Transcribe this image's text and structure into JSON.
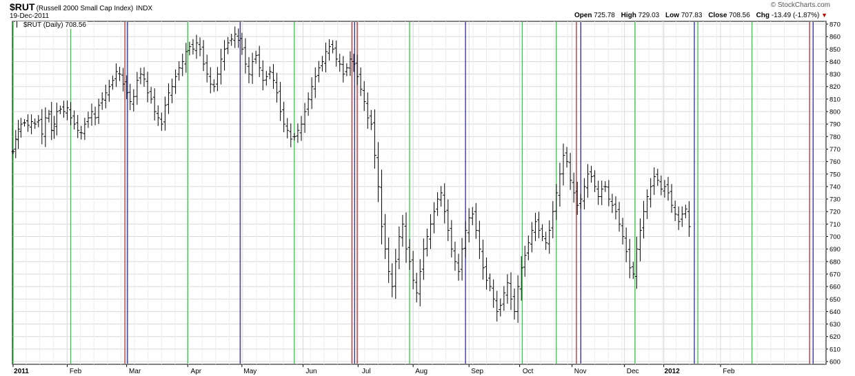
{
  "header": {
    "symbol": "$RUT",
    "description": "(Russell 2000 Small Cap Index)",
    "exchange": "INDX",
    "date": "19-Dec-2011",
    "brand": "© StockCharts.com",
    "open_label": "Open",
    "open": "725.78",
    "high_label": "High",
    "high": "729.03",
    "low_label": "Low",
    "low": "707.83",
    "close_label": "Close",
    "close": "708.56",
    "chg_label": "Chg",
    "chg": "-13.49 (-1.87%)",
    "chg_direction_icon": "down-triangle-icon",
    "chg_color": "#c00000"
  },
  "legend": {
    "label": "$RUT (Daily) 708.56"
  },
  "chart_data": {
    "type": "ohlc-bar",
    "title": "$RUT (Russell 2000 Small Cap Index)",
    "ylim": [
      600,
      870
    ],
    "y_ticks": [
      600,
      610,
      620,
      630,
      640,
      650,
      660,
      670,
      680,
      690,
      700,
      710,
      720,
      730,
      740,
      750,
      760,
      770,
      780,
      790,
      800,
      810,
      820,
      830,
      840,
      850,
      860,
      870
    ],
    "x_tick_labels": [
      "2011",
      "Feb",
      "Mar",
      "Apr",
      "May",
      "Jun",
      "Jul",
      "Aug",
      "Sep",
      "Oct",
      "Nov",
      "Dec",
      "2012",
      "Feb"
    ],
    "x_tick_bold": [
      "2011",
      "2012"
    ],
    "grid": true,
    "colors": {
      "bars": "#000000",
      "grid": "#d8d8d8",
      "green": "#2ecc40",
      "red": "#b03030",
      "blue": "#2b2b9e"
    },
    "closes": [
      [
        0,
        768
      ],
      [
        3,
        778
      ],
      [
        6,
        786
      ],
      [
        9,
        790
      ],
      [
        13,
        791
      ],
      [
        17,
        789
      ],
      [
        21,
        792
      ],
      [
        25,
        790
      ],
      [
        29,
        793
      ],
      [
        33,
        782
      ],
      [
        37,
        795
      ],
      [
        41,
        798
      ],
      [
        44,
        785
      ],
      [
        47,
        790
      ],
      [
        50,
        800
      ],
      [
        54,
        802
      ],
      [
        58,
        800
      ],
      [
        62,
        803
      ],
      [
        66,
        795
      ],
      [
        70,
        790
      ],
      [
        74,
        785
      ],
      [
        78,
        783
      ],
      [
        82,
        790
      ],
      [
        86,
        795
      ],
      [
        90,
        800
      ],
      [
        94,
        795
      ],
      [
        98,
        805
      ],
      [
        102,
        810
      ],
      [
        106,
        815
      ],
      [
        110,
        820
      ],
      [
        114,
        825
      ],
      [
        118,
        832
      ],
      [
        122,
        830
      ],
      [
        126,
        822
      ],
      [
        130,
        815
      ],
      [
        134,
        808
      ],
      [
        138,
        812
      ],
      [
        142,
        825
      ],
      [
        146,
        830
      ],
      [
        150,
        826
      ],
      [
        154,
        815
      ],
      [
        158,
        810
      ],
      [
        162,
        800
      ],
      [
        166,
        795
      ],
      [
        170,
        790
      ],
      [
        174,
        805
      ],
      [
        178,
        815
      ],
      [
        182,
        820
      ],
      [
        186,
        828
      ],
      [
        190,
        835
      ],
      [
        194,
        840
      ],
      [
        198,
        848
      ],
      [
        202,
        852
      ],
      [
        206,
        850
      ],
      [
        210,
        855
      ],
      [
        214,
        850
      ],
      [
        218,
        838
      ],
      [
        222,
        830
      ],
      [
        226,
        822
      ],
      [
        230,
        820
      ],
      [
        234,
        830
      ],
      [
        238,
        842
      ],
      [
        242,
        850
      ],
      [
        246,
        855
      ],
      [
        250,
        858
      ],
      [
        254,
        862
      ],
      [
        258,
        857
      ],
      [
        262,
        850
      ],
      [
        266,
        838
      ],
      [
        270,
        830
      ],
      [
        274,
        840
      ],
      [
        278,
        845
      ],
      [
        282,
        835
      ],
      [
        286,
        825
      ],
      [
        290,
        828
      ],
      [
        294,
        832
      ],
      [
        298,
        825
      ],
      [
        302,
        815
      ],
      [
        306,
        800
      ],
      [
        310,
        790
      ],
      [
        314,
        785
      ],
      [
        318,
        778
      ],
      [
        322,
        780
      ],
      [
        326,
        785
      ],
      [
        330,
        790
      ],
      [
        334,
        800
      ],
      [
        338,
        810
      ],
      [
        342,
        820
      ],
      [
        346,
        828
      ],
      [
        350,
        835
      ],
      [
        354,
        840
      ],
      [
        358,
        848
      ],
      [
        362,
        852
      ],
      [
        366,
        850
      ],
      [
        370,
        842
      ],
      [
        374,
        838
      ],
      [
        378,
        830
      ],
      [
        382,
        835
      ],
      [
        386,
        842
      ],
      [
        390,
        838
      ],
      [
        394,
        828
      ],
      [
        398,
        818
      ],
      [
        402,
        808
      ],
      [
        406,
        795
      ],
      [
        410,
        790
      ],
      [
        414,
        765
      ],
      [
        418,
        740
      ],
      [
        422,
        708
      ],
      [
        426,
        690
      ],
      [
        430,
        672
      ],
      [
        434,
        660
      ],
      [
        438,
        680
      ],
      [
        442,
        700
      ],
      [
        446,
        710
      ],
      [
        450,
        690
      ],
      [
        454,
        680
      ],
      [
        458,
        665
      ],
      [
        462,
        655
      ],
      [
        466,
        672
      ],
      [
        470,
        690
      ],
      [
        474,
        700
      ],
      [
        478,
        710
      ],
      [
        482,
        720
      ],
      [
        486,
        730
      ],
      [
        490,
        735
      ],
      [
        494,
        720
      ],
      [
        498,
        705
      ],
      [
        502,
        690
      ],
      [
        506,
        680
      ],
      [
        510,
        672
      ],
      [
        514,
        690
      ],
      [
        518,
        705
      ],
      [
        522,
        715
      ],
      [
        526,
        718
      ],
      [
        530,
        705
      ],
      [
        534,
        690
      ],
      [
        538,
        675
      ],
      [
        542,
        665
      ],
      [
        546,
        660
      ],
      [
        550,
        650
      ],
      [
        554,
        640
      ],
      [
        558,
        645
      ],
      [
        562,
        655
      ],
      [
        566,
        663
      ],
      [
        570,
        650
      ],
      [
        574,
        640
      ],
      [
        578,
        660
      ],
      [
        582,
        675
      ],
      [
        586,
        685
      ],
      [
        590,
        695
      ],
      [
        594,
        705
      ],
      [
        598,
        712
      ],
      [
        602,
        705
      ],
      [
        606,
        700
      ],
      [
        610,
        695
      ],
      [
        614,
        705
      ],
      [
        618,
        720
      ],
      [
        622,
        735
      ],
      [
        626,
        750
      ],
      [
        630,
        765
      ],
      [
        634,
        760
      ],
      [
        638,
        745
      ],
      [
        642,
        735
      ],
      [
        646,
        725
      ],
      [
        650,
        730
      ],
      [
        654,
        740
      ],
      [
        658,
        750
      ],
      [
        662,
        748
      ],
      [
        666,
        740
      ],
      [
        670,
        732
      ],
      [
        674,
        738
      ],
      [
        678,
        740
      ],
      [
        682,
        730
      ],
      [
        686,
        725
      ],
      [
        690,
        720
      ],
      [
        694,
        710
      ],
      [
        698,
        700
      ],
      [
        702,
        688
      ],
      [
        706,
        675
      ],
      [
        710,
        670
      ],
      [
        714,
        690
      ],
      [
        718,
        705
      ],
      [
        722,
        720
      ],
      [
        726,
        732
      ],
      [
        730,
        740
      ],
      [
        734,
        748
      ],
      [
        738,
        745
      ],
      [
        742,
        738
      ],
      [
        746,
        740
      ],
      [
        750,
        735
      ],
      [
        754,
        725
      ],
      [
        758,
        718
      ],
      [
        762,
        712
      ],
      [
        766,
        718
      ],
      [
        770,
        722
      ],
      [
        774,
        708
      ]
    ],
    "events": [
      {
        "day": 0,
        "color": "green"
      },
      {
        "day": 66,
        "color": "green"
      },
      {
        "day": 128,
        "color": "red"
      },
      {
        "day": 131,
        "color": "blue"
      },
      {
        "day": 200,
        "color": "green"
      },
      {
        "day": 260,
        "color": "blue"
      },
      {
        "day": 322,
        "color": "green"
      },
      {
        "day": 388,
        "color": "red"
      },
      {
        "day": 391,
        "color": "blue"
      },
      {
        "day": 394,
        "color": "red"
      },
      {
        "day": 454,
        "color": "green"
      },
      {
        "day": 518,
        "color": "blue"
      },
      {
        "day": 583,
        "color": "green"
      },
      {
        "day": 622,
        "color": "green"
      },
      {
        "day": 645,
        "color": "red"
      },
      {
        "day": 650,
        "color": "blue"
      },
      {
        "day": 712,
        "color": "green"
      },
      {
        "day": 780,
        "color": "blue"
      },
      {
        "day": 784,
        "color": "green"
      },
      {
        "day": 846,
        "color": "green"
      },
      {
        "day": 912,
        "color": "red"
      },
      {
        "day": 916,
        "color": "blue"
      }
    ],
    "x_ticks_days": [
      0,
      62,
      130,
      200,
      262,
      332,
      395,
      458,
      522,
      580,
      640,
      700,
      745,
      810
    ]
  }
}
